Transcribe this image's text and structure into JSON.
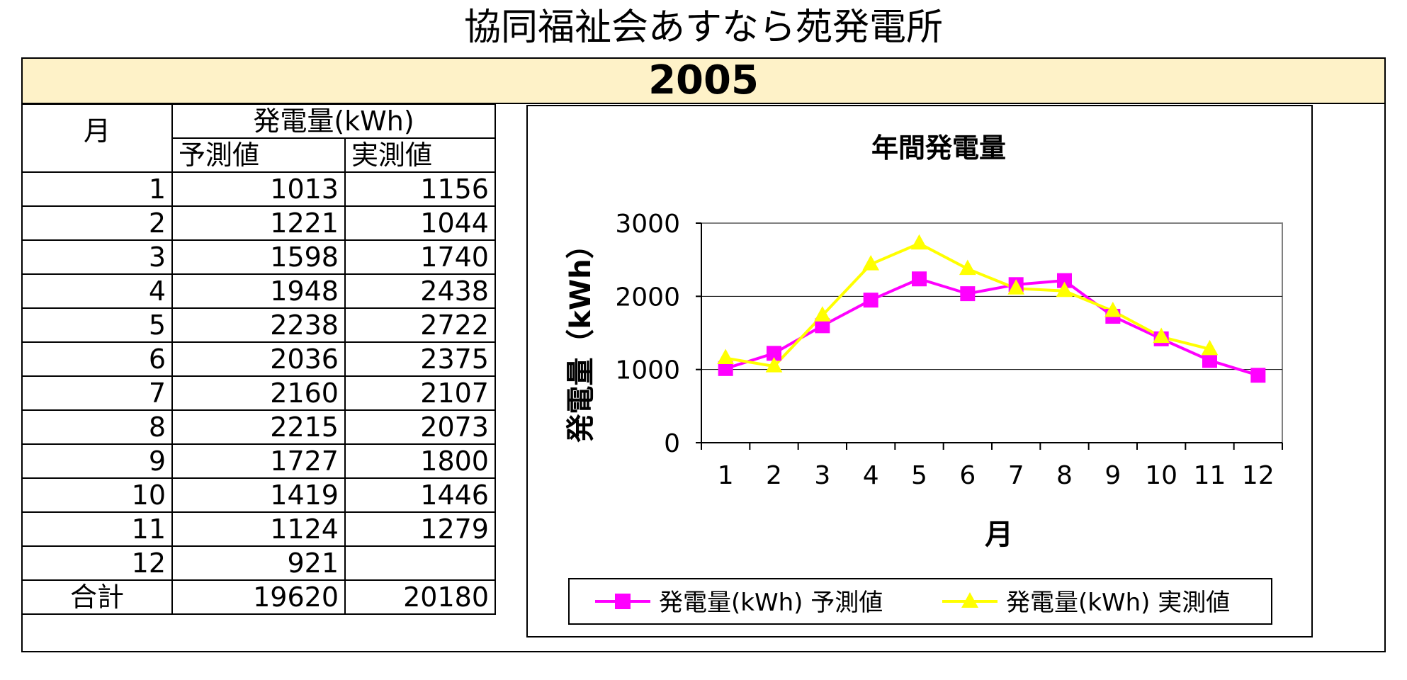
{
  "page": {
    "title": "協同福祉会あすなら苑発電所",
    "year": "2005"
  },
  "table": {
    "month_header": "月",
    "group_header": "発電量(kWh)",
    "pred_header": "予測値",
    "actual_header": "実測値",
    "rows": [
      {
        "month": "1",
        "pred": "1013",
        "actual": "1156"
      },
      {
        "month": "2",
        "pred": "1221",
        "actual": "1044"
      },
      {
        "month": "3",
        "pred": "1598",
        "actual": "1740"
      },
      {
        "month": "4",
        "pred": "1948",
        "actual": "2438"
      },
      {
        "month": "5",
        "pred": "2238",
        "actual": "2722"
      },
      {
        "month": "6",
        "pred": "2036",
        "actual": "2375"
      },
      {
        "month": "7",
        "pred": "2160",
        "actual": "2107"
      },
      {
        "month": "8",
        "pred": "2215",
        "actual": "2073"
      },
      {
        "month": "9",
        "pred": "1727",
        "actual": "1800"
      },
      {
        "month": "10",
        "pred": "1419",
        "actual": "1446"
      },
      {
        "month": "11",
        "pred": "1124",
        "actual": "1279"
      },
      {
        "month": "12",
        "pred": "921",
        "actual": ""
      }
    ],
    "total_label": "合計",
    "total_pred": "19620",
    "total_actual": "20180"
  },
  "colors": {
    "pred": "#ff00ff",
    "actual": "#ffff00",
    "band": "#fef2c8"
  },
  "chart_data": {
    "type": "line",
    "title": "年間発電量",
    "xlabel": "月",
    "ylabel": "発電量（kWh）",
    "categories": [
      "1",
      "2",
      "3",
      "4",
      "5",
      "6",
      "7",
      "8",
      "9",
      "10",
      "11",
      "12"
    ],
    "ylim": [
      0,
      3000
    ],
    "yticks": [
      "0",
      "1000",
      "2000",
      "3000"
    ],
    "grid": true,
    "legend_position": "bottom",
    "series": [
      {
        "name": "発電量(kWh) 予測値",
        "marker": "square",
        "values": [
          1013,
          1221,
          1598,
          1948,
          2238,
          2036,
          2160,
          2215,
          1727,
          1419,
          1124,
          921
        ]
      },
      {
        "name": "発電量(kWh) 実測値",
        "marker": "triangle",
        "values": [
          1156,
          1044,
          1740,
          2438,
          2722,
          2375,
          2107,
          2073,
          1800,
          1446,
          1279,
          null
        ]
      }
    ]
  }
}
